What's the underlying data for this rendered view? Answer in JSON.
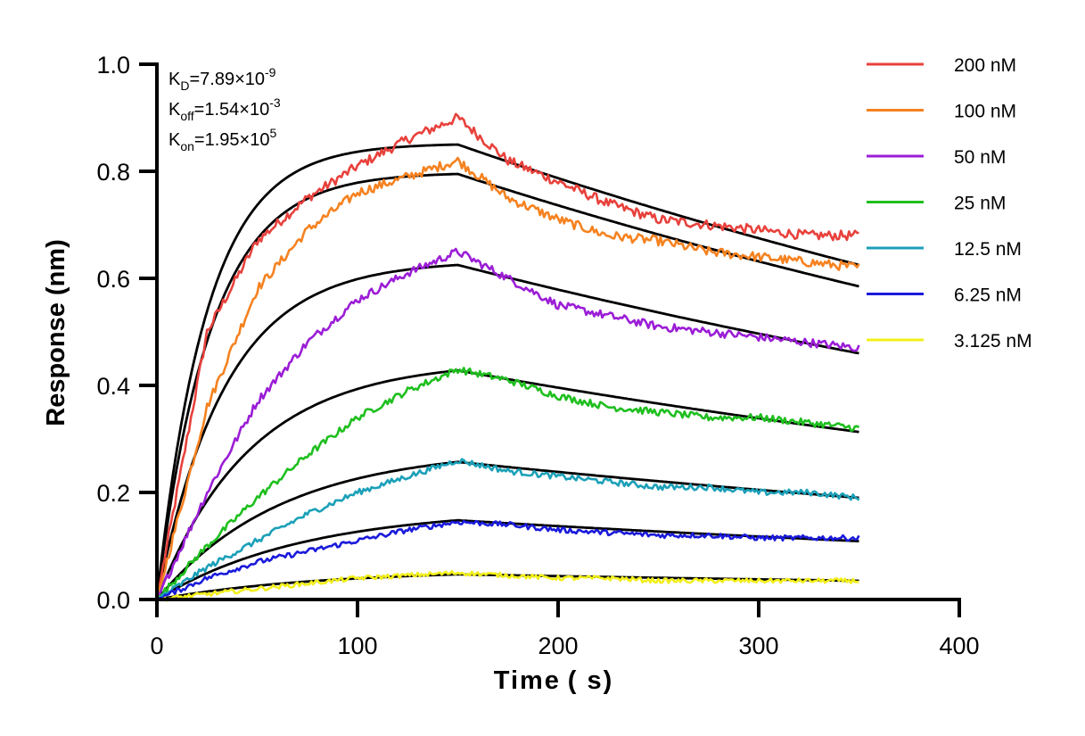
{
  "chart_data": {
    "type": "line",
    "xlabel": "Time ( s)",
    "ylabel": "Response (nm)",
    "xlim": [
      0,
      400
    ],
    "ylim": [
      0,
      1.0
    ],
    "x_ticks": [
      "0",
      "100",
      "200",
      "300",
      "400"
    ],
    "y_ticks": [
      "0.0",
      "0.2",
      "0.4",
      "0.6",
      "0.8",
      "1.0"
    ],
    "grid": false,
    "legend_position": "top-right",
    "association_end_s": 150,
    "end_s": 350,
    "annotations": [
      {
        "base": "K",
        "sub": "D",
        "value": "=7.89×10",
        "sup": "-9"
      },
      {
        "base": "K",
        "sub": "off",
        "value": "=1.54×10",
        "sup": "-3"
      },
      {
        "base": "K",
        "sub": "on",
        "value": "=1.95×10",
        "sup": "5"
      }
    ],
    "fit_color": "#000000",
    "series": [
      {
        "name": "200 nM",
        "color": "#e8413c",
        "x": [
          0,
          25,
          50,
          75,
          100,
          125,
          150,
          175,
          200,
          225,
          250,
          275,
          300,
          325,
          350
        ],
        "y": [
          0,
          0.5,
          0.67,
          0.75,
          0.81,
          0.86,
          0.9,
          0.82,
          0.78,
          0.74,
          0.71,
          0.7,
          0.69,
          0.68,
          0.68
        ],
        "fit_peak": 0.85,
        "fit_end": 0.625
      },
      {
        "name": "100 nM",
        "color": "#f58220",
        "x": [
          0,
          25,
          50,
          75,
          100,
          125,
          150,
          175,
          200,
          225,
          250,
          275,
          300,
          325,
          350
        ],
        "y": [
          0,
          0.36,
          0.58,
          0.69,
          0.76,
          0.79,
          0.82,
          0.75,
          0.71,
          0.68,
          0.67,
          0.65,
          0.64,
          0.63,
          0.62
        ],
        "fit_peak": 0.795,
        "fit_end": 0.585
      },
      {
        "name": "50 nM",
        "color": "#9b1dd6",
        "x": [
          0,
          25,
          50,
          75,
          100,
          125,
          150,
          175,
          200,
          225,
          250,
          275,
          300,
          325,
          350
        ],
        "y": [
          0,
          0.2,
          0.37,
          0.48,
          0.56,
          0.61,
          0.65,
          0.6,
          0.55,
          0.53,
          0.51,
          0.5,
          0.49,
          0.48,
          0.47
        ],
        "fit_peak": 0.625,
        "fit_end": 0.46
      },
      {
        "name": "25 nM",
        "color": "#1fbf1f",
        "x": [
          0,
          25,
          50,
          75,
          100,
          125,
          150,
          175,
          200,
          225,
          250,
          275,
          300,
          325,
          350
        ],
        "y": [
          0,
          0.1,
          0.19,
          0.27,
          0.34,
          0.39,
          0.43,
          0.41,
          0.38,
          0.36,
          0.35,
          0.34,
          0.34,
          0.33,
          0.32
        ],
        "fit_peak": 0.428,
        "fit_end": 0.313
      },
      {
        "name": "12.5 nM",
        "color": "#1ba0b8",
        "x": [
          0,
          25,
          50,
          75,
          100,
          125,
          150,
          175,
          200,
          225,
          250,
          275,
          300,
          325,
          350
        ],
        "y": [
          0,
          0.06,
          0.11,
          0.16,
          0.2,
          0.23,
          0.26,
          0.24,
          0.23,
          0.22,
          0.21,
          0.21,
          0.2,
          0.2,
          0.19
        ],
        "fit_peak": 0.257,
        "fit_end": 0.19
      },
      {
        "name": "6.25 nM",
        "color": "#1a1adb",
        "x": [
          0,
          25,
          50,
          75,
          100,
          125,
          150,
          175,
          200,
          225,
          250,
          275,
          300,
          325,
          350
        ],
        "y": [
          0,
          0.04,
          0.07,
          0.09,
          0.11,
          0.13,
          0.145,
          0.14,
          0.13,
          0.125,
          0.12,
          0.12,
          0.115,
          0.115,
          0.115
        ],
        "fit_peak": 0.148,
        "fit_end": 0.109
      },
      {
        "name": "3.125 nM",
        "color": "#f2ef1a",
        "x": [
          0,
          25,
          50,
          75,
          100,
          125,
          150,
          175,
          200,
          225,
          250,
          275,
          300,
          325,
          350
        ],
        "y": [
          0,
          0.01,
          0.02,
          0.03,
          0.04,
          0.045,
          0.05,
          0.045,
          0.04,
          0.04,
          0.035,
          0.035,
          0.035,
          0.035,
          0.035
        ],
        "fit_peak": 0.047,
        "fit_end": 0.035
      }
    ]
  }
}
